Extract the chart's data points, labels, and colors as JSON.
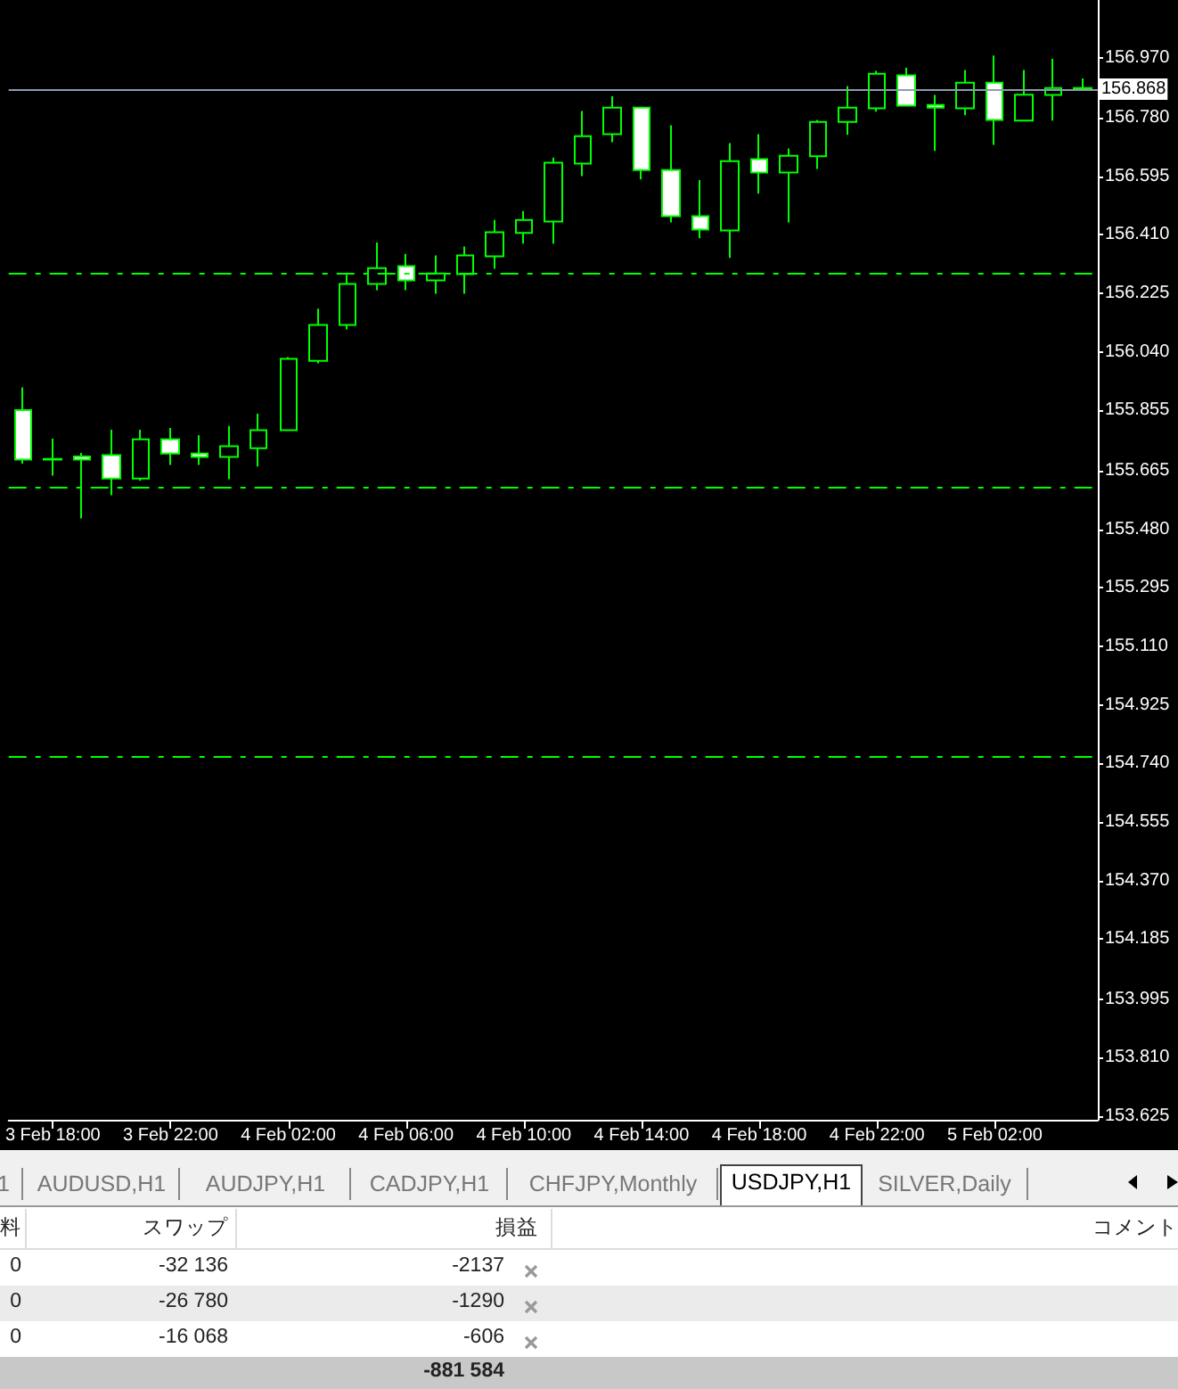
{
  "chart_data": [
    {
      "type": "candlestick",
      "color": "#00ff00",
      "categories": [
        null,
        "3 Feb 18:00",
        null,
        null,
        null,
        "3 Feb 22:00",
        null,
        null,
        null,
        "4 Feb 02:00",
        null,
        null,
        null,
        "4 Feb 06:00",
        null,
        null,
        null,
        "4 Feb 10:00",
        null,
        null,
        null,
        "4 Feb 14:00",
        null,
        null,
        null,
        "4 Feb 18:00",
        null,
        null,
        null,
        "4 Feb 22:00",
        null,
        null,
        null,
        "5 Feb 02:00",
        null,
        null,
        null
      ],
      "ohlc": [
        [
          155.856,
          155.928,
          155.687,
          155.7
        ],
        [
          155.7,
          155.766,
          155.649,
          155.702
        ],
        [
          155.71,
          155.721,
          155.514,
          155.7
        ],
        [
          155.714,
          155.794,
          155.587,
          155.64
        ],
        [
          155.64,
          155.794,
          155.633,
          155.764
        ],
        [
          155.764,
          155.8,
          155.683,
          155.719
        ],
        [
          155.719,
          155.777,
          155.683,
          155.708
        ],
        [
          155.708,
          155.806,
          155.638,
          155.742
        ],
        [
          155.736,
          155.845,
          155.678,
          155.793
        ],
        [
          155.793,
          156.024,
          155.793,
          156.018
        ],
        [
          156.012,
          156.177,
          156.004,
          156.125
        ],
        [
          156.125,
          156.284,
          156.111,
          156.255
        ],
        [
          156.255,
          156.386,
          156.235,
          156.305
        ],
        [
          156.311,
          156.35,
          156.235,
          156.266
        ],
        [
          156.266,
          156.345,
          156.224,
          156.288
        ],
        [
          156.286,
          156.373,
          156.224,
          156.345
        ],
        [
          156.342,
          156.457,
          156.303,
          156.418
        ],
        [
          156.416,
          156.485,
          156.382,
          156.457
        ],
        [
          156.452,
          156.654,
          156.382,
          156.638
        ],
        [
          156.635,
          156.801,
          156.596,
          156.722
        ],
        [
          156.728,
          156.848,
          156.703,
          156.812
        ],
        [
          156.812,
          156.814,
          156.585,
          156.615
        ],
        [
          156.615,
          156.756,
          156.449,
          156.469
        ],
        [
          156.469,
          156.583,
          156.399,
          156.427
        ],
        [
          156.424,
          156.7,
          156.337,
          156.643
        ],
        [
          156.649,
          156.728,
          156.54,
          156.607
        ],
        [
          156.607,
          156.683,
          156.449,
          156.66
        ],
        [
          156.658,
          156.773,
          156.618,
          156.767
        ],
        [
          156.767,
          156.88,
          156.726,
          156.812
        ],
        [
          156.81,
          156.928,
          156.799,
          156.919
        ],
        [
          156.914,
          156.938,
          156.818,
          156.818
        ],
        [
          156.82,
          156.852,
          156.675,
          156.812
        ],
        [
          156.81,
          156.931,
          156.788,
          156.891
        ],
        [
          156.891,
          156.977,
          156.694,
          156.773
        ],
        [
          156.771,
          156.931,
          156.771,
          156.853
        ],
        [
          156.852,
          156.966,
          156.771,
          156.874
        ],
        [
          156.874,
          156.904,
          156.868,
          156.868
        ]
      ],
      "ylim": [
        153.614,
        157.152
      ],
      "yticks": [
        {
          "value": 156.97,
          "label": "156.970"
        },
        {
          "value": 156.78,
          "label": "156.780"
        },
        156.595,
        {
          "value": 156.41,
          "label": "156.410"
        },
        156.225,
        {
          "value": 156.04,
          "label": "156.040"
        },
        155.855,
        155.665,
        {
          "value": 155.48,
          "label": "155.480"
        },
        155.295,
        {
          "value": 155.11,
          "label": "155.110"
        },
        154.925,
        {
          "value": 154.74,
          "label": "154.740"
        },
        154.555,
        {
          "value": 154.37,
          "label": "154.370"
        },
        154.185,
        153.995,
        {
          "value": 153.81,
          "label": "153.810"
        },
        153.625
      ],
      "ref_lines": [
        {
          "axis": "y",
          "value": 156.868,
          "label": "156.868",
          "color": "#8c9bb0",
          "line_style": "solid"
        },
        {
          "axis": "y",
          "value": 156.294,
          "label": null,
          "color": "#00ff00",
          "line_style": "dashed"
        },
        {
          "axis": "y",
          "value": 155.614,
          "label": null,
          "color": "#00ff00",
          "line_style": "dashed"
        },
        {
          "axis": "y",
          "value": 154.763,
          "label": null,
          "color": "#00ff00",
          "line_style": "dashed"
        }
      ]
    },
    {
      "type": "other",
      "annotations": [
        "1",
        "AUDUSD,H1",
        "AUDJPY,H1",
        "CADJPY,H1",
        "CHFJPY,Monthly",
        "USDJPY,H1",
        "SILVER,Daily",
        "料",
        "スワップ",
        "損益",
        "コメント",
        "0",
        "-32 136",
        "-2137",
        "0",
        "-26 780",
        "-1290",
        "0",
        "-16 068",
        "-606",
        "-881 584"
      ]
    }
  ]
}
